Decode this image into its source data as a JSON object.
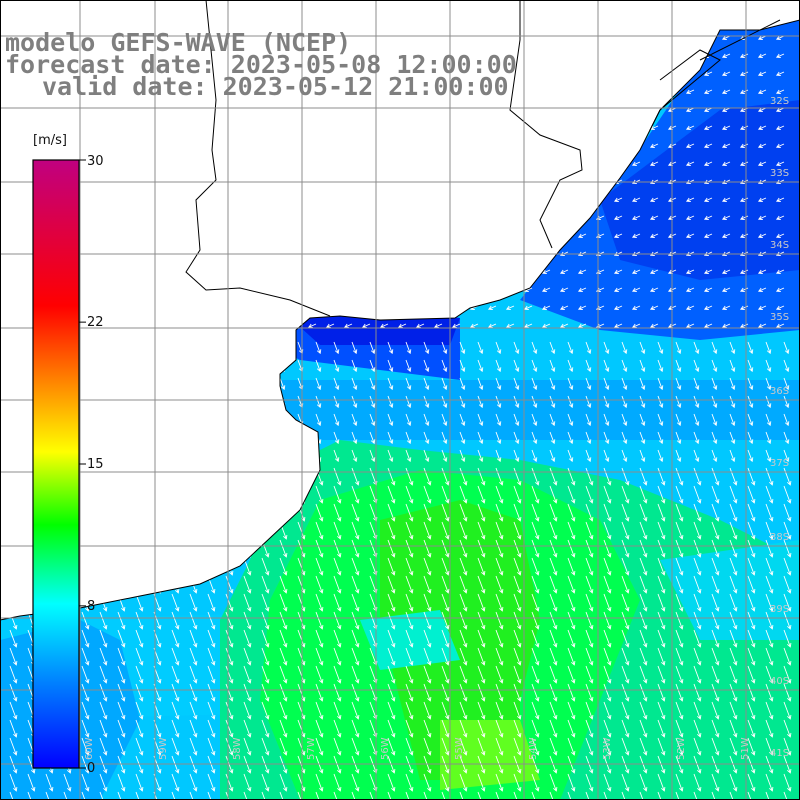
{
  "title": {
    "line1": "modelo GEFS-WAVE (NCEP)",
    "line2": "forecast date: 2023-05-08 12:00:00",
    "line3": "valid date: 2023-05-12 21:00:00"
  },
  "colorbar": {
    "unit": "[m/s]",
    "range": [
      0,
      30
    ],
    "ticks": [
      {
        "value": 30,
        "label": "30"
      },
      {
        "value": 22,
        "label": "22"
      },
      {
        "value": 15,
        "label": "15"
      },
      {
        "value": 8,
        "label": "8"
      },
      {
        "value": 0,
        "label": "0"
      }
    ],
    "colors": [
      "#0000ff",
      "#0080ff",
      "#00ffff",
      "#00ff00",
      "#ffff00",
      "#ff8000",
      "#ff0000",
      "#c00080"
    ]
  },
  "map": {
    "lat_labels": [
      "32S",
      "33S",
      "34S",
      "35S",
      "36S",
      "37S",
      "38S",
      "39S",
      "40S",
      "41S"
    ],
    "lon_labels": [
      "60W",
      "59W",
      "58W",
      "57W",
      "56W",
      "55W",
      "54W",
      "53W",
      "52W",
      "51W"
    ],
    "land_color": "#ffffff",
    "coast_color": "#000000",
    "grid_color": "#8c8c8c",
    "arrow_color": "#ffffff"
  }
}
